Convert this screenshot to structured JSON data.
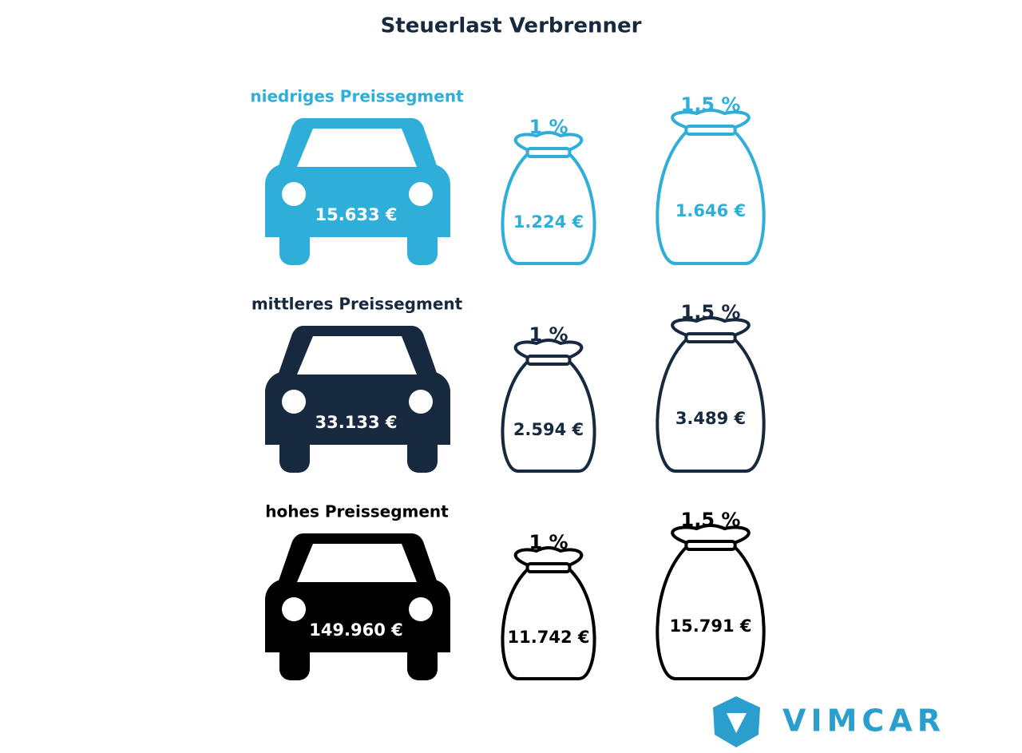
{
  "header": {
    "title": "Steuerlast Verbrenner"
  },
  "rows": [
    {
      "label": "niedriges Preissegment",
      "color": "#2eaed8",
      "car_value": "15.633 €",
      "bags": [
        {
          "rate": "1 %",
          "value": "1.224 €"
        },
        {
          "rate": "1,5 %",
          "value": "1.646 €"
        }
      ]
    },
    {
      "label": "mittleres Preissegment",
      "color": "#16293f",
      "car_value": "33.133 €",
      "bags": [
        {
          "rate": "1 %",
          "value": "2.594 €"
        },
        {
          "rate": "1,5 %",
          "value": "3.489 €"
        }
      ]
    },
    {
      "label": "hohes Preissegment",
      "color": "#000000",
      "car_value": "149.960 €",
      "bags": [
        {
          "rate": "1 %",
          "value": "11.742 €"
        },
        {
          "rate": "1,5 %",
          "value": "15.791 €"
        }
      ]
    }
  ],
  "logo": {
    "text": "VIMCAR",
    "color": "#2a9fce"
  }
}
